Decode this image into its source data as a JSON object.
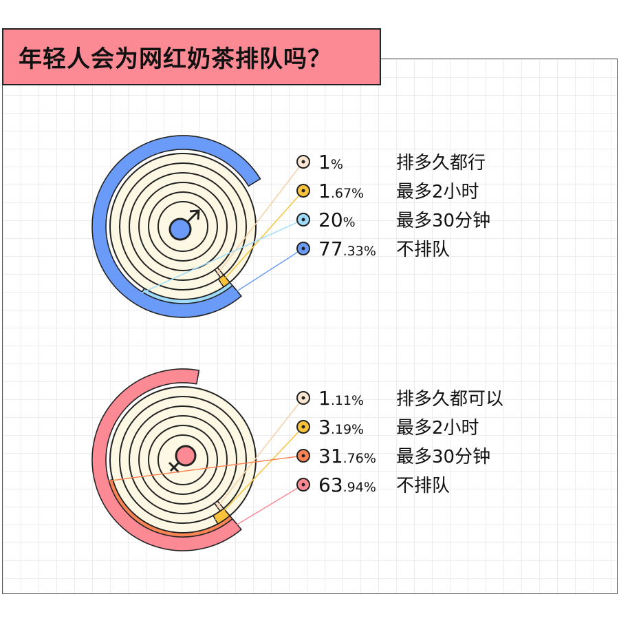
{
  "title": "年轻人会为网红奶茶排队吗？",
  "colors": {
    "title_bg": "#fb8a95",
    "ring_bg": "#fdf8e4",
    "male_any": "#fbe6d2",
    "male_2h": "#f8c33a",
    "male_30": "#9fdcfb",
    "male_no": "#6b9bf8",
    "female_any": "#fbe6d2",
    "female_2h": "#f8c33a",
    "female_30": "#fb8455",
    "female_no": "#fb8a95"
  },
  "chart_data": [
    {
      "type": "pie",
      "gender_icon": "male-symbol-icon",
      "labels": [
        "排多久都行",
        "最多2小时",
        "最多30分钟",
        "不排队"
      ],
      "values": [
        1,
        1.67,
        20,
        77.33
      ],
      "value_text": [
        {
          "int": "1",
          "dec": "%"
        },
        {
          "int": "1",
          "dec": ".67%"
        },
        {
          "int": "20",
          "dec": "%"
        },
        {
          "int": "77",
          "dec": ".33%"
        }
      ],
      "colors": [
        "#fbe6d2",
        "#f8c33a",
        "#9fdcfb",
        "#6b9bf8"
      ]
    },
    {
      "type": "pie",
      "gender_icon": "female-symbol-icon",
      "labels": [
        "排多久都可以",
        "最多2小时",
        "最多30分钟",
        "不排队"
      ],
      "values": [
        1.11,
        3.19,
        31.76,
        63.94
      ],
      "value_text": [
        {
          "int": "1",
          "dec": ".11%"
        },
        {
          "int": "3",
          "dec": ".19%"
        },
        {
          "int": "31",
          "dec": ".76%"
        },
        {
          "int": "63",
          "dec": ".94%"
        }
      ],
      "colors": [
        "#fbe6d2",
        "#f8c33a",
        "#fb8455",
        "#fb8a95"
      ]
    }
  ]
}
